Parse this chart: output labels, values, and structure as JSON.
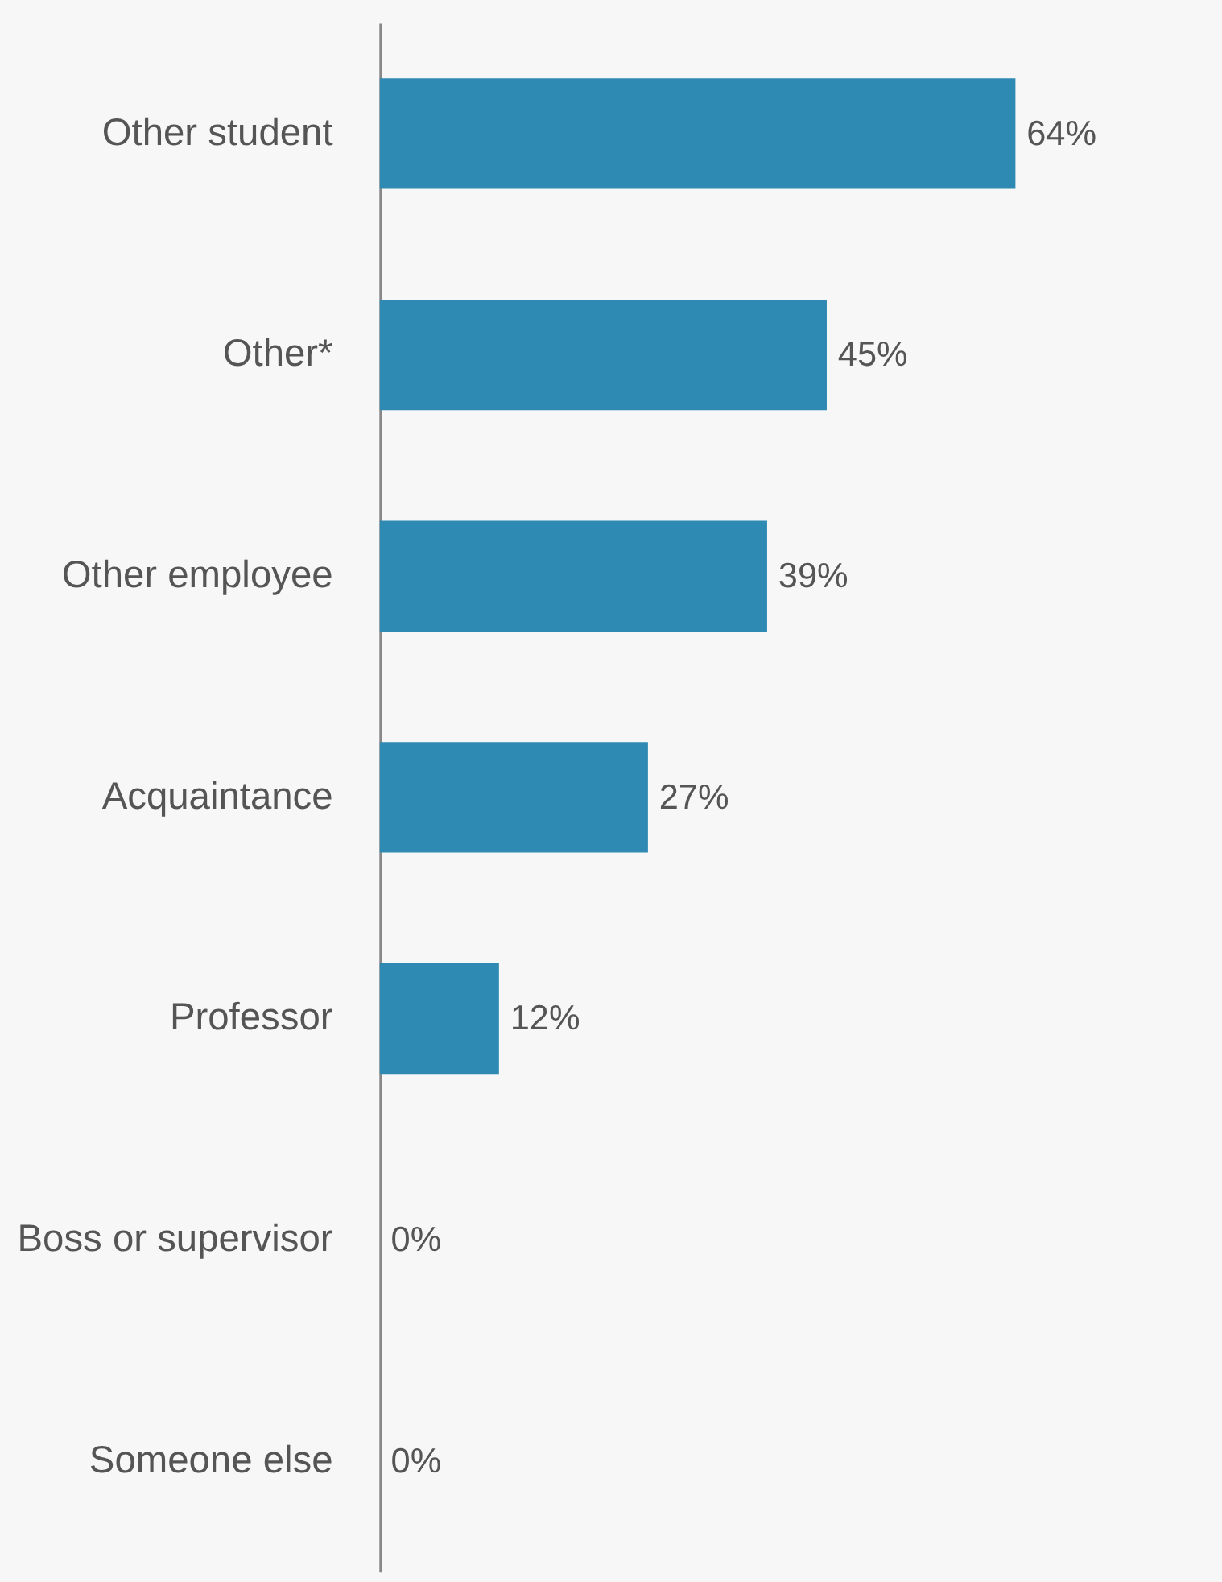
{
  "chart_data": {
    "type": "bar",
    "orientation": "horizontal",
    "categories": [
      "Other student",
      "Other*",
      "Other employee",
      "Acquaintance",
      "Professor",
      "Boss or supervisor",
      "Someone else"
    ],
    "values": [
      64,
      45,
      39,
      27,
      12,
      0,
      0
    ],
    "value_labels": [
      "64%",
      "45%",
      "39%",
      "27%",
      "12%",
      "0%",
      "0%"
    ],
    "color": "#2e8ab2",
    "grid": false,
    "tick_labels": "y"
  }
}
